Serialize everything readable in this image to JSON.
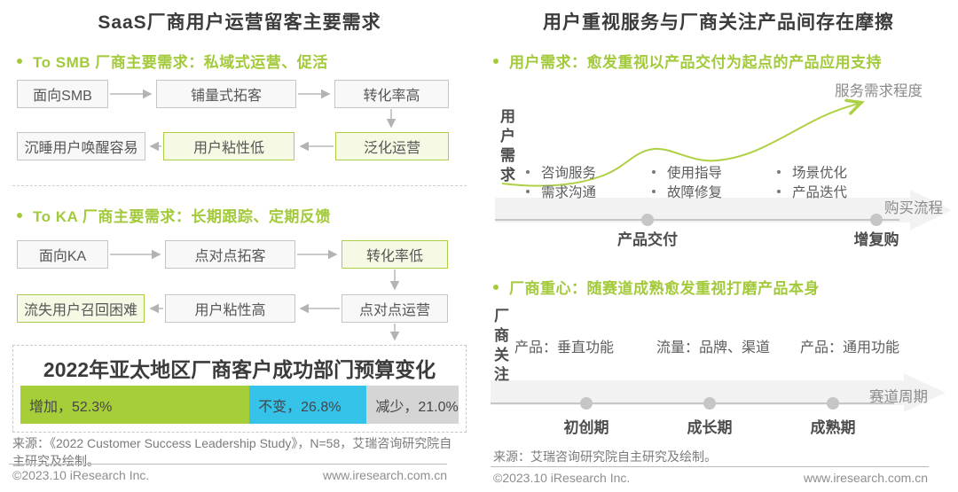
{
  "chart_data": {
    "type": "bar",
    "title": "2022年亚太地区厂商客户成功部门预算变化",
    "orientation": "horizontal-stacked",
    "categories": [
      "增加",
      "不变",
      "减少"
    ],
    "values": [
      52.3,
      26.8,
      21.0
    ],
    "unit": "%",
    "labels": [
      "增加，52.3%",
      "不变，26.8%",
      "减少，21.0%"
    ],
    "colors": [
      "#a5ce39",
      "#36c3ea",
      "#d5d5d5"
    ]
  },
  "left": {
    "title": "SaaS厂商用户运营留客主要需求",
    "smb_heading": "To SMB 厂商主要需求：私域式运营、促活",
    "smb_row1": [
      "面向SMB",
      "铺量式拓客",
      "转化率高"
    ],
    "smb_row2": [
      "沉睡用户唤醒容易",
      "用户粘性低",
      "泛化运营"
    ],
    "ka_heading": "To KA 厂商主要需求：长期跟踪、定期反馈",
    "ka_row1": [
      "面向KA",
      "点对点拓客",
      "转化率低"
    ],
    "ka_row2": [
      "流失用户召回困难",
      "用户粘性高",
      "点对点运营"
    ],
    "source": "来源：《2022 Customer Success Leadership Study》，N=58，艾瑞咨询研究院自主研究及绘制。"
  },
  "right": {
    "title": "用户重视服务与厂商关注产品间存在摩擦",
    "user_heading": "用户需求：愈发重视以产品交付为起点的产品应用支持",
    "y_axis_label": "用户需求",
    "curve_label": "服务需求程度",
    "needs": [
      [
        "咨询服务",
        "需求沟通"
      ],
      [
        "使用指导",
        "故障修复"
      ],
      [
        "场景优化",
        "产品迭代"
      ]
    ],
    "x_axis_label": "购买流程",
    "stages": [
      "产品交付",
      "增复购"
    ],
    "vendor_heading": "厂商重心：随赛道成熟愈发重视打磨产品本身",
    "vendor_axis_label": "厂商关注",
    "focus": [
      "产品：垂直功能",
      "流量：品牌、渠道",
      "产品：通用功能"
    ],
    "cycle_label": "赛道周期",
    "cycle_stages": [
      "初创期",
      "成长期",
      "成熟期"
    ],
    "source": "来源：艾瑞咨询研究院自主研究及绘制。"
  },
  "footer": {
    "copyright": "©2023.10 iResearch Inc.",
    "site": "www.iresearch.com.cn"
  }
}
